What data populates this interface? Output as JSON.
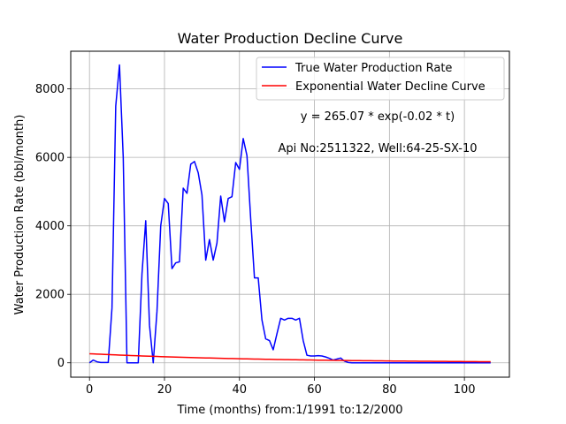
{
  "chart_data": {
    "type": "line",
    "title": "Water Production Decline Curve",
    "xlabel": "Time (months) from:1/1991 to:12/2000",
    "ylabel": "Water Production Rate (bbl/month)",
    "xlim": [
      -5,
      112
    ],
    "ylim": [
      -420,
      9100
    ],
    "xticks": [
      0,
      20,
      40,
      60,
      80,
      100
    ],
    "yticks": [
      0,
      2000,
      4000,
      6000,
      8000
    ],
    "grid": true,
    "legend_position": "upper right",
    "annotations": {
      "equation": "y = 265.07 * exp(-0.02 * t)",
      "well": "Api No:2511322, Well:64-25-SX-10"
    },
    "series": [
      {
        "name": "True Water Production Rate",
        "color": "#0000ff",
        "x": [
          0,
          1,
          2,
          3,
          4,
          5,
          6,
          7,
          8,
          9,
          10,
          11,
          12,
          13,
          14,
          15,
          16,
          17,
          18,
          19,
          20,
          21,
          22,
          23,
          24,
          25,
          26,
          27,
          28,
          29,
          30,
          31,
          32,
          33,
          34,
          35,
          36,
          37,
          38,
          39,
          40,
          41,
          42,
          43,
          44,
          45,
          46,
          47,
          48,
          49,
          50,
          51,
          52,
          53,
          54,
          55,
          56,
          57,
          58,
          59,
          60,
          61,
          62,
          63,
          64,
          65,
          66,
          67,
          68,
          69,
          70,
          71,
          72,
          73,
          74,
          75,
          76,
          77,
          78,
          79,
          80,
          81,
          82,
          83,
          84,
          85,
          86,
          87,
          88,
          89,
          90,
          91,
          92,
          93,
          94,
          95,
          96,
          97,
          98,
          99,
          100,
          101,
          102,
          103,
          104,
          105,
          106,
          107
        ],
        "values": [
          0,
          80,
          30,
          10,
          10,
          10,
          1600,
          7500,
          8700,
          6000,
          0,
          0,
          0,
          0,
          2600,
          4150,
          1100,
          0,
          1500,
          4000,
          4800,
          4650,
          2750,
          2920,
          2950,
          5100,
          4950,
          5800,
          5880,
          5550,
          4900,
          3000,
          3600,
          3000,
          3500,
          4870,
          4120,
          4800,
          4850,
          5850,
          5650,
          6550,
          6050,
          4200,
          2480,
          2480,
          1250,
          700,
          650,
          380,
          850,
          1300,
          1250,
          1300,
          1300,
          1250,
          1300,
          650,
          220,
          200,
          200,
          210,
          200,
          170,
          130,
          80,
          110,
          140,
          50,
          10,
          0,
          0,
          0,
          0,
          0,
          0,
          0,
          0,
          0,
          0,
          0,
          0,
          0,
          0,
          0,
          0,
          0,
          0,
          0,
          0,
          0,
          0,
          0,
          0,
          0,
          0,
          0,
          0,
          0,
          0,
          0,
          0,
          0,
          0,
          0,
          0,
          0,
          0
        ]
      },
      {
        "name": "Exponential Water Decline Curve",
        "color": "#ff0000",
        "function": {
          "a": 265.07,
          "b": -0.02
        },
        "x_range": [
          0,
          107
        ]
      }
    ]
  }
}
